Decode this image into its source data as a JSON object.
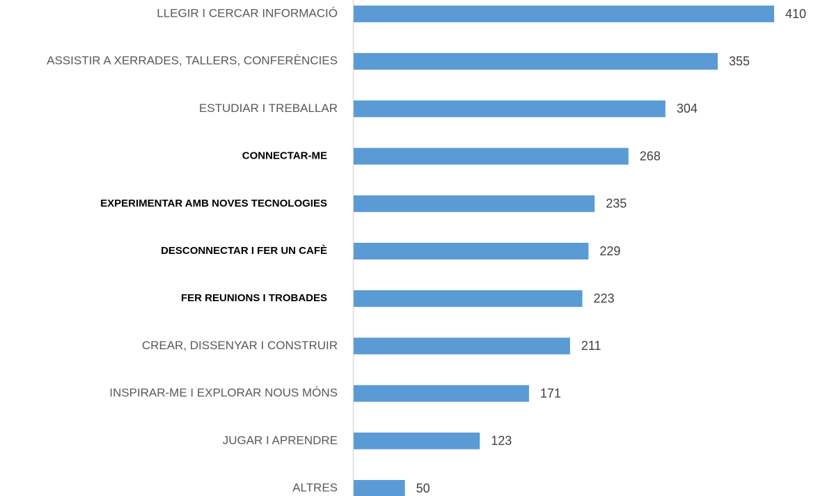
{
  "chart_data": {
    "type": "bar",
    "orientation": "horizontal",
    "categories": [
      "LLEGIR I CERCAR INFORMACIÓ",
      "ASSISTIR A XERRADES, TALLERS, CONFERÈNCIES",
      "ESTUDIAR I TREBALLAR",
      "CONNECTAR-ME",
      "EXPERIMENTAR AMB NOVES TECNOLOGIES",
      "DESCONNECTAR I FER UN CAFÈ",
      "FER REUNIONS I TROBADES",
      "CREAR, DISSENYAR I CONSTRUIR",
      "INSPIRAR-ME I EXPLORAR NOUS MÓNS",
      "JUGAR I APRENDRE",
      "ALTRES"
    ],
    "values": [
      410,
      355,
      304,
      268,
      235,
      229,
      223,
      211,
      171,
      123,
      50
    ],
    "bold_labels": [
      false,
      false,
      false,
      true,
      true,
      true,
      true,
      false,
      false,
      false,
      false
    ],
    "color": "#5b9bd5"
  }
}
